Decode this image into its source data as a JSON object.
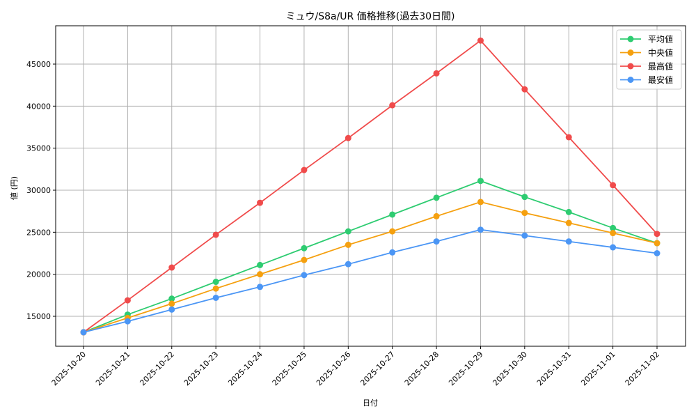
{
  "chart_data": {
    "type": "line",
    "title": "ミュウ/S8a/UR 価格推移(過去30日間)",
    "xlabel": "日付",
    "ylabel": "値 (円)",
    "ylim": [
      11300,
      49400
    ],
    "yticks": [
      15000,
      20000,
      25000,
      30000,
      35000,
      40000,
      45000
    ],
    "grid": true,
    "legend_position": "upper right",
    "categories": [
      "2025-10-20",
      "2025-10-21",
      "2025-10-22",
      "2025-10-23",
      "2025-10-24",
      "2025-10-25",
      "2025-10-26",
      "2025-10-27",
      "2025-10-28",
      "2025-10-29",
      "2025-10-30",
      "2025-10-31",
      "2025-11-01",
      "2025-11-02"
    ],
    "series": [
      {
        "name": "平均値",
        "color": "#2ecc71",
        "marker": "circle",
        "values": [
          13100,
          15200,
          17100,
          19100,
          21100,
          23100,
          25100,
          27100,
          29100,
          31100,
          29200,
          27400,
          25500,
          23700
        ]
      },
      {
        "name": "中央値",
        "color": "#f5a00f",
        "marker": "circle",
        "values": [
          13100,
          14800,
          16500,
          18300,
          20000,
          21700,
          23500,
          25100,
          26900,
          28600,
          27300,
          26100,
          24900,
          23700
        ]
      },
      {
        "name": "最高値",
        "color": "#f04b4b",
        "marker": "circle",
        "values": [
          13100,
          16900,
          20800,
          24700,
          28500,
          32400,
          36200,
          40100,
          43900,
          47800,
          42000,
          36300,
          30600,
          24800
        ]
      },
      {
        "name": "最安値",
        "color": "#4b96f5",
        "marker": "circle",
        "values": [
          13100,
          14400,
          15800,
          17200,
          18500,
          19900,
          21200,
          22600,
          23900,
          25300,
          24600,
          23900,
          23200,
          22500
        ]
      }
    ]
  }
}
